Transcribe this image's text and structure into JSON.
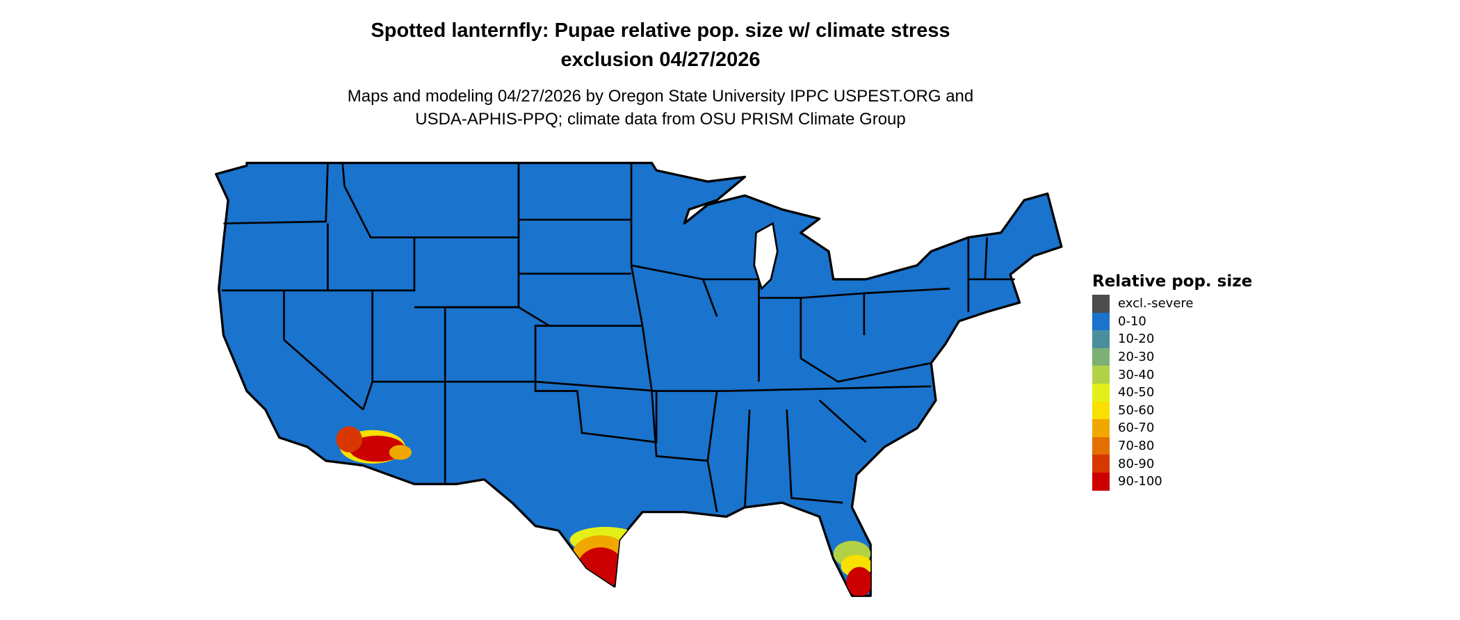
{
  "title": {
    "line1": "Spotted lanternfly: Pupae relative pop. size w/ climate stress",
    "line2": "exclusion 04/27/2026"
  },
  "subtitle": {
    "line1": "Maps and modeling 04/27/2026 by Oregon State University IPPC USPEST.ORG and",
    "line2": "USDA-APHIS-PPQ; climate data from OSU PRISM Climate Group"
  },
  "map": {
    "region": "Contiguous United States",
    "base_color": "#1a73cc",
    "border_color": "#000000",
    "hotspots": [
      "southern Arizona / southeastern California",
      "southern Texas",
      "southern Florida"
    ]
  },
  "legend": {
    "title": "Relative pop. size",
    "items": [
      {
        "label": "excl.-severe",
        "color": "#4d4d4d"
      },
      {
        "label": "0-10",
        "color": "#1a73cc"
      },
      {
        "label": "10-20",
        "color": "#4a8f9c"
      },
      {
        "label": "20-30",
        "color": "#7db074"
      },
      {
        "label": "30-40",
        "color": "#b2d147"
      },
      {
        "label": "40-50",
        "color": "#e3f018"
      },
      {
        "label": "50-60",
        "color": "#f8e000"
      },
      {
        "label": "60-70",
        "color": "#f0a800"
      },
      {
        "label": "70-80",
        "color": "#e37000"
      },
      {
        "label": "80-90",
        "color": "#d83800"
      },
      {
        "label": "90-100",
        "color": "#cc0000"
      }
    ]
  }
}
